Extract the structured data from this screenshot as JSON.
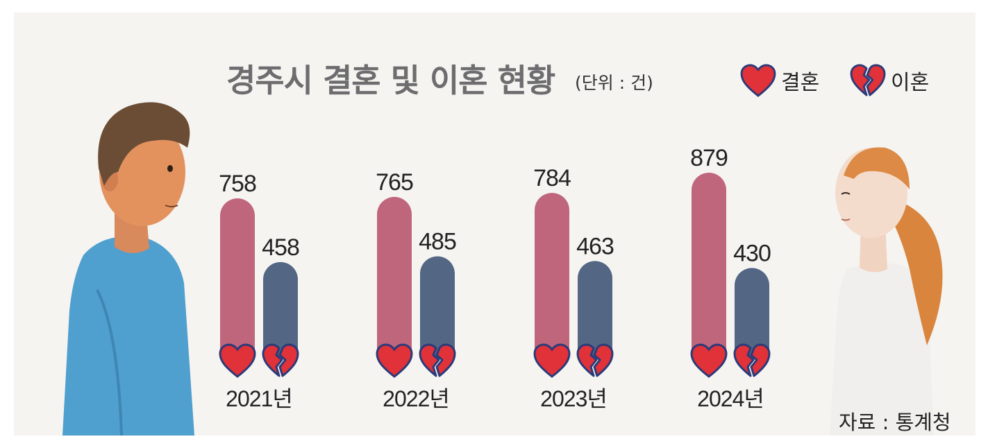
{
  "header": {
    "title": "경주시 결혼 및 이혼 현황",
    "unit_note": "(단위 : 건)"
  },
  "legend": {
    "marriage": "결혼",
    "divorce": "이혼"
  },
  "source": "자료 : 통계청",
  "colors": {
    "marriage": "#c0667c",
    "divorce": "#536684",
    "heart": "#e03238",
    "heart_outline": "#2b3a78",
    "panel": "#f5f4f1"
  },
  "icons": {
    "marriage": "heart-icon",
    "divorce": "broken-heart-icon"
  },
  "chart_data": {
    "type": "bar",
    "title": "경주시 결혼 및 이혼 현황",
    "categories": [
      "2021년",
      "2022년",
      "2023년",
      "2024년"
    ],
    "series": [
      {
        "name": "결혼",
        "values": [
          758,
          765,
          784,
          879
        ]
      },
      {
        "name": "이혼",
        "values": [
          458,
          485,
          463,
          430
        ]
      }
    ],
    "xlabel": "",
    "ylabel": "",
    "grid": false,
    "legend_position": "top-right"
  }
}
